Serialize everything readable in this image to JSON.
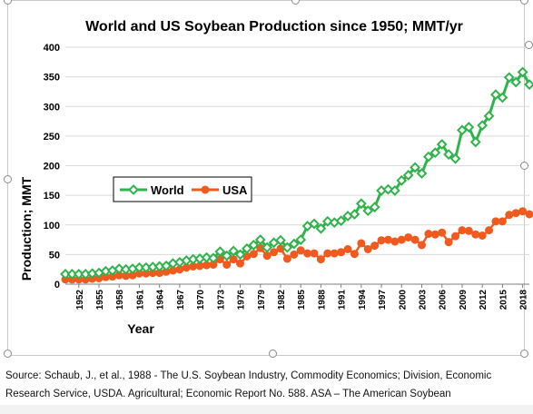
{
  "chart_data": {
    "type": "line",
    "title": "World and US Soybean Production since 1950; MMT/yr",
    "xlabel": "Year",
    "ylabel": "Production; MMT",
    "ylim": [
      0,
      400
    ],
    "yticks": [
      0,
      50,
      100,
      150,
      200,
      250,
      300,
      350,
      400
    ],
    "xlim": [
      1950,
      2019
    ],
    "xticks": [
      1952,
      1955,
      1958,
      1961,
      1964,
      1967,
      1970,
      1973,
      1976,
      1979,
      1982,
      1985,
      1988,
      1991,
      1994,
      1997,
      2000,
      2003,
      2006,
      2009,
      2012,
      2015,
      2018
    ],
    "grid": true,
    "legend_position": "inside-left",
    "series": [
      {
        "name": "World",
        "color": "#2fb34a",
        "marker": "diamond",
        "x": [
          1950,
          1951,
          1952,
          1953,
          1954,
          1955,
          1956,
          1957,
          1958,
          1959,
          1960,
          1961,
          1962,
          1963,
          1964,
          1965,
          1966,
          1967,
          1968,
          1969,
          1970,
          1971,
          1972,
          1973,
          1974,
          1975,
          1976,
          1977,
          1978,
          1979,
          1980,
          1981,
          1982,
          1983,
          1984,
          1985,
          1986,
          1987,
          1988,
          1989,
          1990,
          1991,
          1992,
          1993,
          1994,
          1995,
          1996,
          1997,
          1998,
          1999,
          2000,
          2001,
          2002,
          2003,
          2004,
          2005,
          2006,
          2007,
          2008,
          2009,
          2010,
          2011,
          2012,
          2013,
          2014,
          2015,
          2016,
          2017,
          2018,
          2019
        ],
        "values": [
          17,
          17,
          17,
          17,
          18,
          19,
          22,
          23,
          26,
          25,
          26,
          28,
          28,
          29,
          30,
          31,
          35,
          37,
          40,
          42,
          43,
          45,
          44,
          55,
          48,
          56,
          50,
          60,
          66,
          75,
          62,
          70,
          74,
          62,
          68,
          75,
          98,
          102,
          94,
          106,
          104,
          107,
          115,
          118,
          136,
          124,
          130,
          158,
          160,
          158,
          175,
          184,
          197,
          187,
          215,
          222,
          236,
          219,
          212,
          260,
          265,
          240,
          268,
          284,
          320,
          315,
          349,
          341,
          358,
          337
        ]
      },
      {
        "name": "USA",
        "color": "#f05a1e",
        "marker": "circle",
        "x": [
          1950,
          1951,
          1952,
          1953,
          1954,
          1955,
          1956,
          1957,
          1958,
          1959,
          1960,
          1961,
          1962,
          1963,
          1964,
          1965,
          1966,
          1967,
          1968,
          1969,
          1970,
          1971,
          1972,
          1973,
          1974,
          1975,
          1976,
          1977,
          1978,
          1979,
          1980,
          1981,
          1982,
          1983,
          1984,
          1985,
          1986,
          1987,
          1988,
          1989,
          1990,
          1991,
          1992,
          1993,
          1994,
          1995,
          1996,
          1997,
          1998,
          1999,
          2000,
          2001,
          2002,
          2003,
          2004,
          2005,
          2006,
          2007,
          2008,
          2009,
          2010,
          2011,
          2012,
          2013,
          2014,
          2015,
          2016,
          2017,
          2018,
          2019
        ],
        "values": [
          8,
          8,
          8,
          8,
          9,
          10,
          12,
          13,
          15,
          14,
          15,
          18,
          18,
          19,
          19,
          21,
          23,
          25,
          28,
          30,
          31,
          32,
          33,
          42,
          33,
          42,
          35,
          47,
          51,
          61,
          48,
          54,
          60,
          43,
          50,
          57,
          52,
          52,
          42,
          52,
          52,
          54,
          59,
          51,
          69,
          59,
          65,
          74,
          75,
          72,
          75,
          79,
          75,
          66,
          85,
          84,
          87,
          71,
          81,
          91,
          90,
          84,
          82,
          91,
          106,
          106,
          117,
          120,
          123,
          118
        ]
      }
    ],
    "source_text": "Source: Schaub, J., et al., 1988 - The U.S. Soybean Industry, Commodity Economics; Division, Economic Research Service, USDA. Agricultural; Economic Report No. 588. ASA – The American Soybean"
  }
}
